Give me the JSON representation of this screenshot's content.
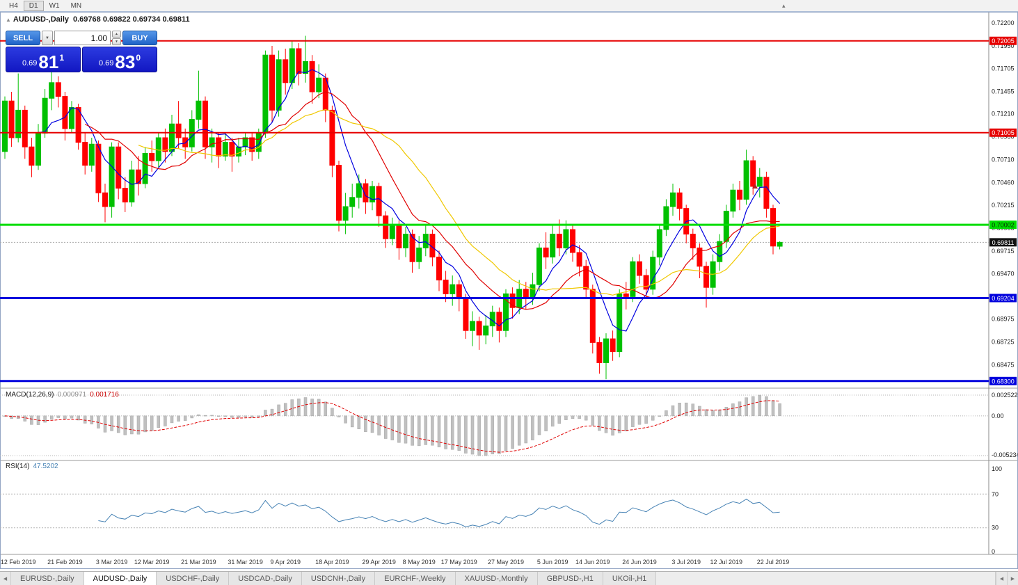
{
  "toolbar": {
    "periods": [
      "H4",
      "D1",
      "W1",
      "MN"
    ],
    "active_period": "D1"
  },
  "icons": {
    "toolbar_more": "▴",
    "collapse": "▲",
    "dropdown": "▼",
    "spin_up": "▲",
    "spin_down": "▼",
    "tab_prev": "◀",
    "tab_next": "▶"
  },
  "chart": {
    "symbol_title": "AUDUSD-,Daily",
    "ohlc_text": "0.69768 0.69822 0.69734 0.69811",
    "one_click": {
      "sell_label": "SELL",
      "buy_label": "BUY",
      "volume": "1.00",
      "sell_price": {
        "prefix": "0.69",
        "big": "81",
        "sup": "1"
      },
      "buy_price": {
        "prefix": "0.69",
        "big": "83",
        "sup": "0"
      }
    }
  },
  "macd_panel": {
    "name": "MACD(12,26,9)",
    "value_main": "0.000971",
    "value_signal": "0.001716",
    "axis": [
      "0.002522",
      "0.00",
      "-0.005234"
    ]
  },
  "rsi_panel": {
    "name": "RSI(14)",
    "value": "47.5202",
    "axis": [
      "100",
      "70",
      "30",
      "0"
    ]
  },
  "tabs": {
    "items": [
      "EURUSD-,Daily",
      "AUDUSD-,Daily",
      "USDCHF-,Daily",
      "USDCAD-,Daily",
      "USDCNH-,Daily",
      "EURCHF-,Weekly",
      "XAUUSD-,Monthly",
      "GBPUSD-,H1",
      "UKOil-,H1"
    ],
    "active_index": 1
  },
  "chart_data": {
    "type": "candlestick",
    "title": "AUDUSD-,Daily",
    "current_price": 0.69811,
    "up_color": "#00c000",
    "down_color": "#ff0000",
    "price_axis_ticks": [
      "0.72200",
      "0.71950",
      "0.71705",
      "0.71455",
      "0.71210",
      "0.70960",
      "0.70710",
      "0.70460",
      "0.70215",
      "0.69965",
      "0.69715",
      "0.69470",
      "0.68975",
      "0.68725",
      "0.68475"
    ],
    "levels": [
      {
        "price": 0.72005,
        "color": "#e60000",
        "width": 2,
        "label": "0.72005",
        "label_text_color": "#ffffff"
      },
      {
        "price": 0.71005,
        "color": "#e60000",
        "width": 2,
        "label": "0.71005",
        "label_text_color": "#ffffff"
      },
      {
        "price": 0.70002,
        "color": "#00dd00",
        "width": 3,
        "label": "0.70002",
        "label_text_color": "#062b06"
      },
      {
        "price": 0.69204,
        "color": "#0000dd",
        "width": 3,
        "label": "0.69204",
        "label_text_color": "#ffffff"
      },
      {
        "price": 0.683,
        "color": "#0000dd",
        "width": 3,
        "label": "0.68300",
        "label_text_color": "#ffffff"
      }
    ],
    "moving_averages": [
      {
        "period": 6,
        "color": "#0000e0"
      },
      {
        "period": 13,
        "color": "#e00000"
      },
      {
        "period": 21,
        "color": "#f0c800"
      }
    ],
    "x_labels": {
      "labels": [
        "12 Feb 2019",
        "21 Feb 2019",
        "3 Mar 2019",
        "12 Mar 2019",
        "21 Mar 2019",
        "31 Mar 2019",
        "9 Apr 2019",
        "18 Apr 2019",
        "29 Apr 2019",
        "8 May 2019",
        "17 May 2019",
        "27 May 2019",
        "5 Jun 2019",
        "14 Jun 2019",
        "24 Jun 2019",
        "3 Jul 2019",
        "12 Jul 2019",
        "22 Jul 2019"
      ],
      "anchors": [
        2,
        9,
        16,
        22,
        29,
        36,
        42,
        49,
        56,
        62,
        68,
        75,
        82,
        88,
        95,
        102,
        108,
        115
      ]
    },
    "macd": {
      "fast": 12,
      "slow": 26,
      "signal": 9,
      "histogram_color": "#c0c0c0",
      "signal_color": "#e00000"
    },
    "rsi": {
      "period": 14,
      "color": "#4682b4",
      "levels": [
        70,
        30
      ]
    },
    "candles": [
      [
        0.708,
        0.714,
        0.7072,
        0.7135
      ],
      [
        0.7135,
        0.7145,
        0.7085,
        0.7095
      ],
      [
        0.7095,
        0.7165,
        0.709,
        0.7125
      ],
      [
        0.7125,
        0.713,
        0.7072,
        0.7085
      ],
      [
        0.7085,
        0.7095,
        0.7052,
        0.7065
      ],
      [
        0.7065,
        0.711,
        0.706,
        0.71
      ],
      [
        0.71,
        0.7148,
        0.7095,
        0.7138
      ],
      [
        0.7138,
        0.7168,
        0.7125,
        0.7155
      ],
      [
        0.7155,
        0.7162,
        0.7128,
        0.714
      ],
      [
        0.714,
        0.7145,
        0.7092,
        0.7105
      ],
      [
        0.7105,
        0.7135,
        0.71,
        0.7128
      ],
      [
        0.7128,
        0.7132,
        0.7082,
        0.709
      ],
      [
        0.709,
        0.71,
        0.7055,
        0.7065
      ],
      [
        0.7065,
        0.7095,
        0.7058,
        0.7088
      ],
      [
        0.7088,
        0.7092,
        0.7025,
        0.7035
      ],
      [
        0.7035,
        0.7045,
        0.7003,
        0.702
      ],
      [
        0.702,
        0.709,
        0.7008,
        0.7085
      ],
      [
        0.7085,
        0.709,
        0.7028,
        0.704
      ],
      [
        0.704,
        0.7052,
        0.7014,
        0.7025
      ],
      [
        0.7025,
        0.707,
        0.702,
        0.706
      ],
      [
        0.706,
        0.7075,
        0.7032,
        0.7045
      ],
      [
        0.7045,
        0.7085,
        0.704,
        0.7078
      ],
      [
        0.7078,
        0.7092,
        0.7058,
        0.707
      ],
      [
        0.707,
        0.71,
        0.7063,
        0.7095
      ],
      [
        0.7095,
        0.7105,
        0.7068,
        0.708
      ],
      [
        0.708,
        0.712,
        0.7075,
        0.711
      ],
      [
        0.711,
        0.7135,
        0.7083,
        0.7095
      ],
      [
        0.7095,
        0.7105,
        0.7072,
        0.7085
      ],
      [
        0.7085,
        0.7125,
        0.708,
        0.7115
      ],
      [
        0.7115,
        0.7168,
        0.7105,
        0.7135
      ],
      [
        0.7135,
        0.714,
        0.7072,
        0.7085
      ],
      [
        0.7085,
        0.7105,
        0.7068,
        0.7095
      ],
      [
        0.7095,
        0.71,
        0.7062,
        0.7075
      ],
      [
        0.7075,
        0.71,
        0.707,
        0.709
      ],
      [
        0.709,
        0.7095,
        0.7058,
        0.7075
      ],
      [
        0.7075,
        0.7095,
        0.7068,
        0.7085
      ],
      [
        0.7085,
        0.71,
        0.7076,
        0.7095
      ],
      [
        0.7095,
        0.71,
        0.707,
        0.708
      ],
      [
        0.708,
        0.7105,
        0.7072,
        0.71
      ],
      [
        0.71,
        0.719,
        0.7095,
        0.7185
      ],
      [
        0.7185,
        0.7195,
        0.7112,
        0.7125
      ],
      [
        0.7125,
        0.719,
        0.7118,
        0.718
      ],
      [
        0.718,
        0.7192,
        0.7142,
        0.7155
      ],
      [
        0.7155,
        0.72,
        0.7148,
        0.7192
      ],
      [
        0.7192,
        0.7198,
        0.7152,
        0.7165
      ],
      [
        0.7165,
        0.7206,
        0.7155,
        0.7178
      ],
      [
        0.7178,
        0.7185,
        0.7132,
        0.7145
      ],
      [
        0.7145,
        0.7175,
        0.7138,
        0.716
      ],
      [
        0.716,
        0.7165,
        0.7112,
        0.7125
      ],
      [
        0.7125,
        0.713,
        0.7052,
        0.7065
      ],
      [
        0.7065,
        0.707,
        0.6993,
        0.7005
      ],
      [
        0.7005,
        0.7035,
        0.699,
        0.702
      ],
      [
        0.702,
        0.7045,
        0.7008,
        0.703
      ],
      [
        0.703,
        0.7055,
        0.7018,
        0.7045
      ],
      [
        0.7045,
        0.705,
        0.7012,
        0.7025
      ],
      [
        0.7025,
        0.7048,
        0.7016,
        0.7042
      ],
      [
        0.7042,
        0.7046,
        0.6998,
        0.701
      ],
      [
        0.701,
        0.7015,
        0.6975,
        0.6985
      ],
      [
        0.6985,
        0.7008,
        0.6978,
        0.7
      ],
      [
        0.7,
        0.7005,
        0.6962,
        0.6975
      ],
      [
        0.6975,
        0.6998,
        0.6965,
        0.699
      ],
      [
        0.699,
        0.6995,
        0.6948,
        0.696
      ],
      [
        0.696,
        0.6988,
        0.6952,
        0.6975
      ],
      [
        0.6975,
        0.7,
        0.6966,
        0.699
      ],
      [
        0.699,
        0.6995,
        0.6955,
        0.6965
      ],
      [
        0.6965,
        0.6972,
        0.6928,
        0.694
      ],
      [
        0.694,
        0.695,
        0.6916,
        0.6925
      ],
      [
        0.6925,
        0.6945,
        0.6912,
        0.6935
      ],
      [
        0.6935,
        0.694,
        0.6906,
        0.692
      ],
      [
        0.692,
        0.6925,
        0.6876,
        0.6885
      ],
      [
        0.6885,
        0.6906,
        0.6868,
        0.6895
      ],
      [
        0.6895,
        0.69,
        0.6864,
        0.688
      ],
      [
        0.688,
        0.6902,
        0.687,
        0.689
      ],
      [
        0.689,
        0.6912,
        0.6878,
        0.6905
      ],
      [
        0.6905,
        0.691,
        0.6872,
        0.6885
      ],
      [
        0.6885,
        0.693,
        0.6878,
        0.6925
      ],
      [
        0.6925,
        0.6932,
        0.6898,
        0.691
      ],
      [
        0.691,
        0.694,
        0.6903,
        0.693
      ],
      [
        0.693,
        0.6938,
        0.6908,
        0.692
      ],
      [
        0.692,
        0.6948,
        0.6913,
        0.6935
      ],
      [
        0.6935,
        0.698,
        0.6928,
        0.6975
      ],
      [
        0.6975,
        0.6992,
        0.6952,
        0.6965
      ],
      [
        0.6965,
        0.7,
        0.6958,
        0.699
      ],
      [
        0.699,
        0.7006,
        0.6966,
        0.6975
      ],
      [
        0.6975,
        0.7005,
        0.6968,
        0.6995
      ],
      [
        0.6995,
        0.7,
        0.696,
        0.697
      ],
      [
        0.697,
        0.6978,
        0.6944,
        0.6955
      ],
      [
        0.6955,
        0.6962,
        0.692,
        0.693
      ],
      [
        0.693,
        0.6935,
        0.686,
        0.6872
      ],
      [
        0.6872,
        0.6878,
        0.6838,
        0.685
      ],
      [
        0.685,
        0.6882,
        0.6832,
        0.6876
      ],
      [
        0.6876,
        0.6885,
        0.6852,
        0.6862
      ],
      [
        0.6862,
        0.693,
        0.6856,
        0.6925
      ],
      [
        0.6925,
        0.6938,
        0.6908,
        0.6922
      ],
      [
        0.6922,
        0.6965,
        0.6916,
        0.696
      ],
      [
        0.696,
        0.6968,
        0.6936,
        0.6945
      ],
      [
        0.6945,
        0.6952,
        0.692,
        0.693
      ],
      [
        0.693,
        0.6972,
        0.6924,
        0.6965
      ],
      [
        0.6965,
        0.7,
        0.6956,
        0.6995
      ],
      [
        0.6995,
        0.7028,
        0.6988,
        0.702
      ],
      [
        0.702,
        0.7045,
        0.701,
        0.7035
      ],
      [
        0.7035,
        0.704,
        0.7005,
        0.7018
      ],
      [
        0.7018,
        0.7022,
        0.698,
        0.699
      ],
      [
        0.699,
        0.6996,
        0.6962,
        0.6975
      ],
      [
        0.6975,
        0.698,
        0.6942,
        0.6955
      ],
      [
        0.6955,
        0.696,
        0.691,
        0.6932
      ],
      [
        0.6932,
        0.6968,
        0.6924,
        0.696
      ],
      [
        0.696,
        0.699,
        0.695,
        0.6982
      ],
      [
        0.6982,
        0.7022,
        0.6975,
        0.7015
      ],
      [
        0.7015,
        0.7045,
        0.7008,
        0.7038
      ],
      [
        0.7038,
        0.7048,
        0.7016,
        0.7028
      ],
      [
        0.7028,
        0.7082,
        0.7022,
        0.707
      ],
      [
        0.707,
        0.7075,
        0.7033,
        0.7042
      ],
      [
        0.7042,
        0.7062,
        0.703,
        0.7052
      ],
      [
        0.7052,
        0.7058,
        0.7008,
        0.7018
      ],
      [
        0.7018,
        0.7022,
        0.6968,
        0.6977
      ],
      [
        0.69768,
        0.69822,
        0.69734,
        0.69811
      ]
    ]
  }
}
